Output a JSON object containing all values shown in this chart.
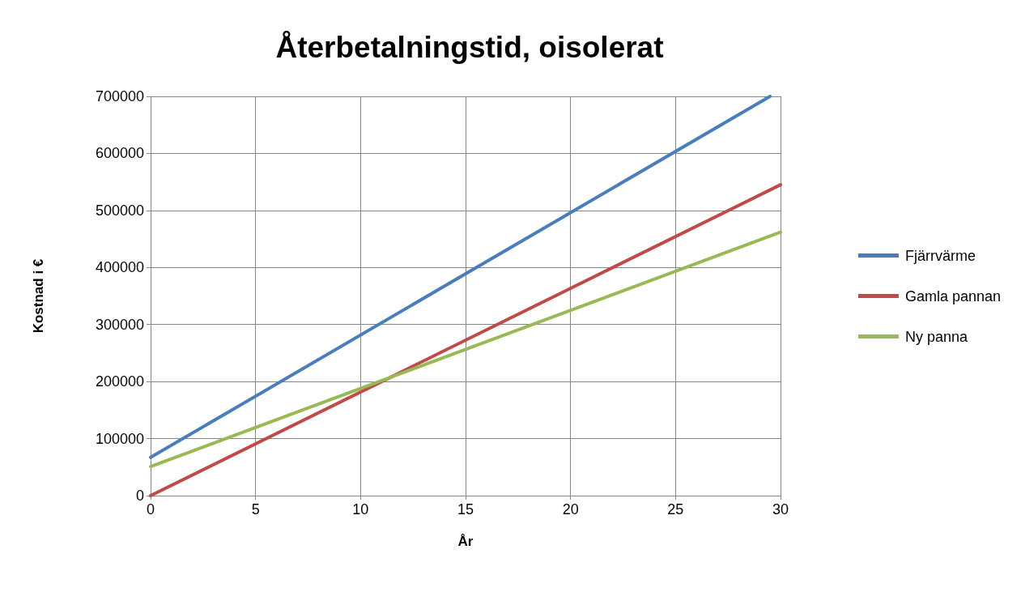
{
  "chart_data": {
    "type": "line",
    "title": "Återbetalningstid, oisolerat",
    "xlabel": "År",
    "ylabel": "Kostnad i €",
    "xlim": [
      0,
      30
    ],
    "xticks": [
      0,
      5,
      10,
      15,
      20,
      25,
      30
    ],
    "ylim": [
      0,
      700000
    ],
    "yticks": [
      0,
      100000,
      200000,
      300000,
      400000,
      500000,
      600000,
      700000
    ],
    "grid": true,
    "legend": "right",
    "marker": "none",
    "line_style": "solid",
    "series": [
      {
        "name": "Fjärrvärme",
        "color": "#4a7ebb",
        "x": [
          0,
          29.5
        ],
        "values": [
          67000,
          700000
        ]
      },
      {
        "name": "Gamla pannan",
        "color": "#be4b48",
        "x": [
          0,
          30
        ],
        "values": [
          0,
          545000
        ]
      },
      {
        "name": "Ny panna",
        "color": "#98b954",
        "x": [
          0,
          30
        ],
        "values": [
          51000,
          462000
        ]
      }
    ]
  }
}
